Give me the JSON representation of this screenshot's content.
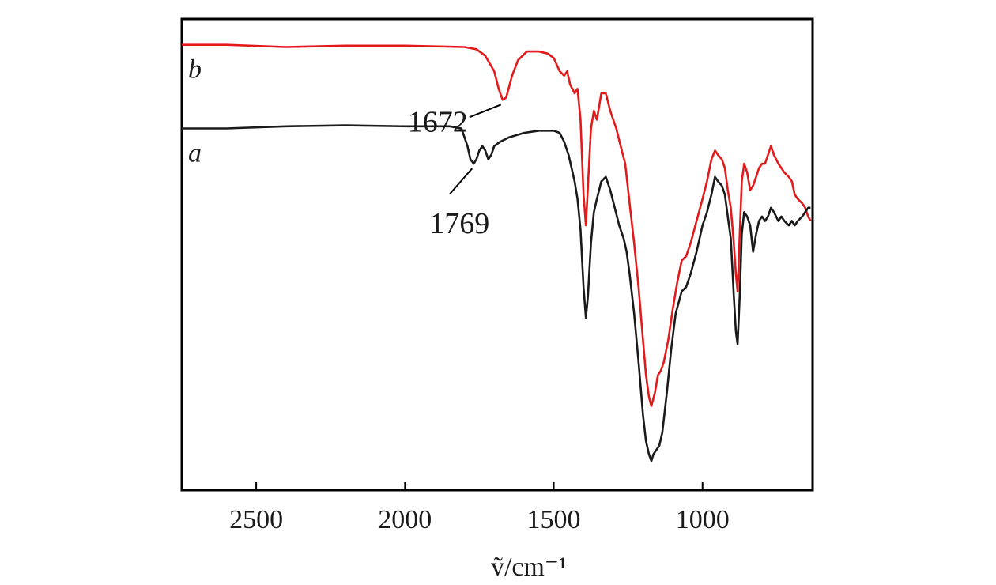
{
  "chart_data": {
    "type": "line",
    "xlabel": "ṽ/cm⁻¹",
    "xlim": [
      2750,
      630
    ],
    "x_reversed": true,
    "x_ticks": [
      2500,
      2000,
      1500,
      1000
    ],
    "x_tick_labels": [
      "2500",
      "2000",
      "1500",
      "1000"
    ],
    "y_ticks": [],
    "grid": false,
    "legend": "none",
    "series": [
      {
        "name": "b",
        "color": "#e31a1c",
        "points": [
          [
            2750,
            0.03
          ],
          [
            2600,
            0.03
          ],
          [
            2400,
            0.035
          ],
          [
            2200,
            0.032
          ],
          [
            2000,
            0.032
          ],
          [
            1800,
            0.035
          ],
          [
            1760,
            0.04
          ],
          [
            1730,
            0.055
          ],
          [
            1700,
            0.09
          ],
          [
            1685,
            0.13
          ],
          [
            1672,
            0.155
          ],
          [
            1660,
            0.15
          ],
          [
            1640,
            0.1
          ],
          [
            1620,
            0.065
          ],
          [
            1590,
            0.045
          ],
          [
            1550,
            0.045
          ],
          [
            1520,
            0.05
          ],
          [
            1500,
            0.06
          ],
          [
            1480,
            0.09
          ],
          [
            1465,
            0.1
          ],
          [
            1455,
            0.09
          ],
          [
            1445,
            0.12
          ],
          [
            1430,
            0.14
          ],
          [
            1420,
            0.13
          ],
          [
            1410,
            0.2
          ],
          [
            1400,
            0.37
          ],
          [
            1392,
            0.44
          ],
          [
            1385,
            0.35
          ],
          [
            1375,
            0.22
          ],
          [
            1365,
            0.18
          ],
          [
            1355,
            0.2
          ],
          [
            1340,
            0.14
          ],
          [
            1325,
            0.14
          ],
          [
            1310,
            0.18
          ],
          [
            1290,
            0.22
          ],
          [
            1275,
            0.26
          ],
          [
            1260,
            0.3
          ],
          [
            1245,
            0.39
          ],
          [
            1230,
            0.48
          ],
          [
            1215,
            0.58
          ],
          [
            1200,
            0.7
          ],
          [
            1190,
            0.78
          ],
          [
            1180,
            0.83
          ],
          [
            1172,
            0.85
          ],
          [
            1160,
            0.82
          ],
          [
            1150,
            0.78
          ],
          [
            1140,
            0.77
          ],
          [
            1130,
            0.75
          ],
          [
            1115,
            0.7
          ],
          [
            1100,
            0.63
          ],
          [
            1085,
            0.57
          ],
          [
            1070,
            0.52
          ],
          [
            1055,
            0.51
          ],
          [
            1040,
            0.48
          ],
          [
            1020,
            0.43
          ],
          [
            1000,
            0.38
          ],
          [
            985,
            0.34
          ],
          [
            970,
            0.29
          ],
          [
            958,
            0.27
          ],
          [
            948,
            0.28
          ],
          [
            935,
            0.29
          ],
          [
            925,
            0.31
          ],
          [
            915,
            0.36
          ],
          [
            905,
            0.4
          ],
          [
            895,
            0.48
          ],
          [
            888,
            0.55
          ],
          [
            882,
            0.59
          ],
          [
            875,
            0.46
          ],
          [
            868,
            0.34
          ],
          [
            860,
            0.3
          ],
          [
            850,
            0.32
          ],
          [
            840,
            0.36
          ],
          [
            830,
            0.35
          ],
          [
            820,
            0.33
          ],
          [
            810,
            0.31
          ],
          [
            800,
            0.3
          ],
          [
            790,
            0.3
          ],
          [
            780,
            0.28
          ],
          [
            770,
            0.26
          ],
          [
            760,
            0.28
          ],
          [
            745,
            0.3
          ],
          [
            735,
            0.31
          ],
          [
            725,
            0.32
          ],
          [
            710,
            0.33
          ],
          [
            700,
            0.34
          ],
          [
            690,
            0.37
          ],
          [
            680,
            0.38
          ],
          [
            665,
            0.39
          ],
          [
            655,
            0.4
          ],
          [
            645,
            0.42
          ],
          [
            637,
            0.43
          ]
        ]
      },
      {
        "name": "a",
        "color": "#1a1a1a",
        "points": [
          [
            2750,
            0.22
          ],
          [
            2600,
            0.22
          ],
          [
            2400,
            0.215
          ],
          [
            2200,
            0.213
          ],
          [
            2000,
            0.215
          ],
          [
            1850,
            0.215
          ],
          [
            1810,
            0.22
          ],
          [
            1790,
            0.26
          ],
          [
            1780,
            0.29
          ],
          [
            1769,
            0.3
          ],
          [
            1760,
            0.29
          ],
          [
            1750,
            0.27
          ],
          [
            1740,
            0.26
          ],
          [
            1730,
            0.27
          ],
          [
            1720,
            0.29
          ],
          [
            1710,
            0.28
          ],
          [
            1700,
            0.26
          ],
          [
            1680,
            0.25
          ],
          [
            1650,
            0.24
          ],
          [
            1600,
            0.23
          ],
          [
            1550,
            0.225
          ],
          [
            1500,
            0.225
          ],
          [
            1480,
            0.23
          ],
          [
            1465,
            0.25
          ],
          [
            1450,
            0.28
          ],
          [
            1440,
            0.31
          ],
          [
            1430,
            0.34
          ],
          [
            1420,
            0.38
          ],
          [
            1410,
            0.45
          ],
          [
            1400,
            0.58
          ],
          [
            1392,
            0.65
          ],
          [
            1385,
            0.6
          ],
          [
            1375,
            0.48
          ],
          [
            1365,
            0.41
          ],
          [
            1355,
            0.38
          ],
          [
            1340,
            0.34
          ],
          [
            1325,
            0.33
          ],
          [
            1310,
            0.36
          ],
          [
            1295,
            0.4
          ],
          [
            1280,
            0.44
          ],
          [
            1265,
            0.47
          ],
          [
            1255,
            0.5
          ],
          [
            1245,
            0.55
          ],
          [
            1230,
            0.64
          ],
          [
            1215,
            0.75
          ],
          [
            1200,
            0.87
          ],
          [
            1190,
            0.93
          ],
          [
            1180,
            0.96
          ],
          [
            1172,
            0.975
          ],
          [
            1165,
            0.96
          ],
          [
            1155,
            0.95
          ],
          [
            1145,
            0.94
          ],
          [
            1135,
            0.91
          ],
          [
            1120,
            0.82
          ],
          [
            1105,
            0.72
          ],
          [
            1090,
            0.64
          ],
          [
            1070,
            0.59
          ],
          [
            1055,
            0.58
          ],
          [
            1040,
            0.55
          ],
          [
            1020,
            0.5
          ],
          [
            1000,
            0.44
          ],
          [
            985,
            0.41
          ],
          [
            970,
            0.37
          ],
          [
            958,
            0.33
          ],
          [
            948,
            0.34
          ],
          [
            935,
            0.35
          ],
          [
            925,
            0.37
          ],
          [
            915,
            0.42
          ],
          [
            905,
            0.47
          ],
          [
            895,
            0.6
          ],
          [
            888,
            0.68
          ],
          [
            882,
            0.71
          ],
          [
            875,
            0.6
          ],
          [
            868,
            0.46
          ],
          [
            860,
            0.41
          ],
          [
            850,
            0.42
          ],
          [
            840,
            0.44
          ],
          [
            830,
            0.5
          ],
          [
            820,
            0.46
          ],
          [
            810,
            0.43
          ],
          [
            800,
            0.42
          ],
          [
            790,
            0.43
          ],
          [
            780,
            0.42
          ],
          [
            770,
            0.4
          ],
          [
            760,
            0.41
          ],
          [
            745,
            0.43
          ],
          [
            735,
            0.42
          ],
          [
            725,
            0.43
          ],
          [
            710,
            0.44
          ],
          [
            700,
            0.43
          ],
          [
            690,
            0.44
          ],
          [
            680,
            0.43
          ],
          [
            665,
            0.42
          ],
          [
            655,
            0.41
          ],
          [
            645,
            0.4
          ],
          [
            637,
            0.4
          ]
        ]
      }
    ],
    "series_labels": [
      {
        "series": "b",
        "text": "b"
      },
      {
        "series": "a",
        "text": "a"
      }
    ],
    "annotations": [
      {
        "text": "1672",
        "x": 1672,
        "series": "b"
      },
      {
        "text": "1769",
        "x": 1769,
        "series": "a"
      }
    ]
  }
}
